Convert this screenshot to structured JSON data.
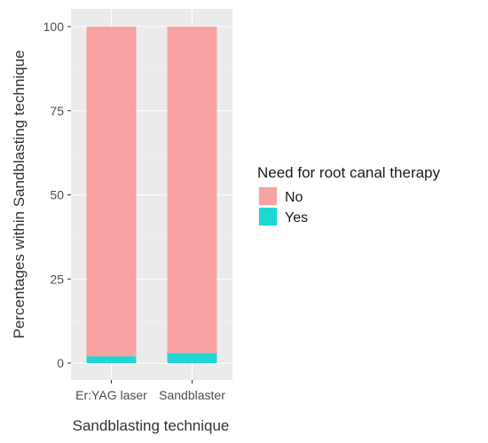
{
  "chart_data": {
    "type": "bar",
    "stacked": true,
    "categories": [
      "Er:YAG laser",
      "Sandblaster"
    ],
    "series": [
      {
        "name": "No",
        "values": [
          98,
          97
        ],
        "color": "#f8a3a3"
      },
      {
        "name": "Yes",
        "values": [
          2,
          3
        ],
        "color": "#1fd6d6"
      }
    ],
    "xlabel": "Sandblasting technique",
    "ylabel": "Percentages within Sandblasting technique",
    "ylim": [
      0,
      100
    ],
    "yticks": [
      "0",
      "25",
      "50",
      "75",
      "100"
    ],
    "grid": true,
    "legend": {
      "title": "Need for root canal therapy",
      "position": "right"
    },
    "panel_background": "#ebebeb"
  }
}
